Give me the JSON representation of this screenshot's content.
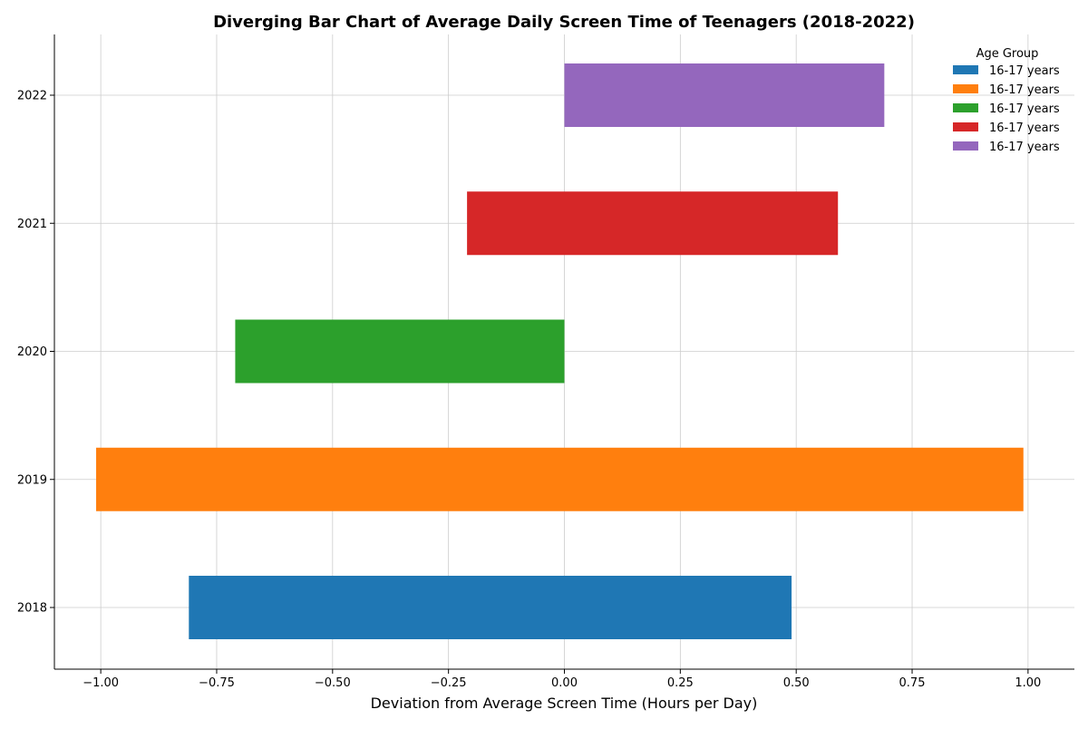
{
  "chart_data": {
    "type": "bar",
    "orientation": "horizontal",
    "title": "Diverging Bar Chart of Average Daily Screen Time of Teenagers (2018-2022)",
    "xlabel": "Deviation from Average Screen Time (Hours per Day)",
    "ylabel": "",
    "xlim": [
      -1.1,
      1.1
    ],
    "x_ticks": [
      -1.0,
      -0.75,
      -0.5,
      -0.25,
      0.0,
      0.25,
      0.5,
      0.75,
      1.0
    ],
    "x_tick_labels": [
      "−1.00",
      "−0.75",
      "−0.50",
      "−0.25",
      "0.00",
      "0.25",
      "0.50",
      "0.75",
      "1.00"
    ],
    "categories": [
      "2018",
      "2019",
      "2020",
      "2021",
      "2022"
    ],
    "bars": [
      {
        "year": "2018",
        "start": -0.81,
        "end": 0.49,
        "color": "#1f77b4"
      },
      {
        "year": "2019",
        "start": -1.01,
        "end": 0.99,
        "color": "#ff7f0e"
      },
      {
        "year": "2020",
        "start": -0.71,
        "end": 0.0,
        "color": "#2ca02c"
      },
      {
        "year": "2021",
        "start": -0.21,
        "end": 0.59,
        "color": "#d62728"
      },
      {
        "year": "2022",
        "start": 0.0,
        "end": 0.69,
        "color": "#9467bd"
      }
    ],
    "legend": {
      "title": "Age Group",
      "placement": "top-right",
      "entries": [
        {
          "label": "16-17 years",
          "color": "#1f77b4"
        },
        {
          "label": "16-17 years",
          "color": "#ff7f0e"
        },
        {
          "label": "16-17 years",
          "color": "#2ca02c"
        },
        {
          "label": "16-17 years",
          "color": "#d62728"
        },
        {
          "label": "16-17 years",
          "color": "#9467bd"
        }
      ]
    },
    "grid": true
  }
}
